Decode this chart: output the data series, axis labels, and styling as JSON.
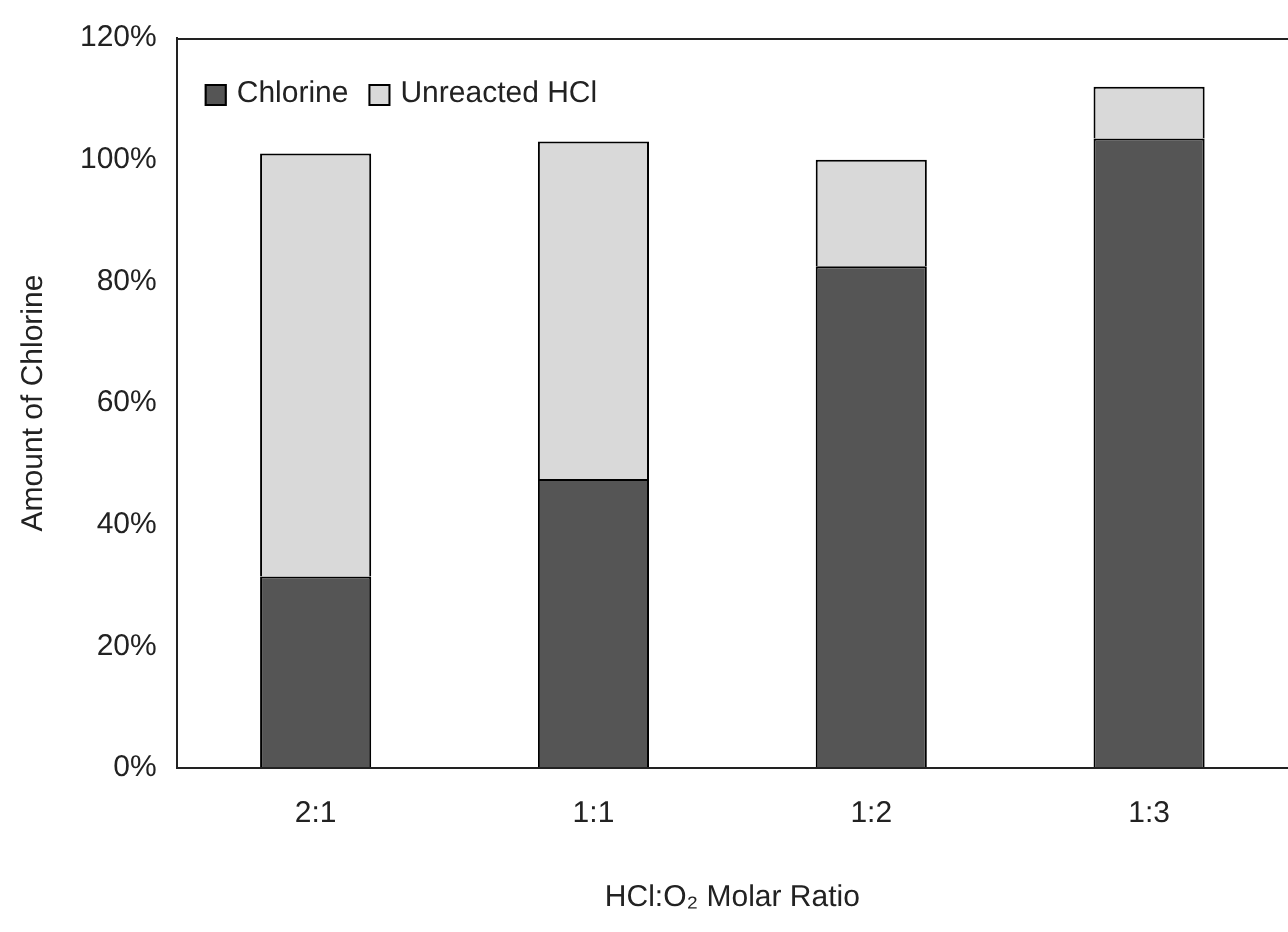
{
  "chart_data": {
    "type": "bar",
    "stacked": true,
    "xlabel": "HCl:O₂ Molar Ratio",
    "ylabel": "Amount of Chlorine",
    "categories": [
      "2:1",
      "1:1",
      "1:2",
      "1:3"
    ],
    "series": [
      {
        "name": "Chlorine",
        "color": "#555555",
        "values": [
          31.5,
          47.5,
          82.5,
          103.5
        ]
      },
      {
        "name": "Unreacted HCl",
        "color": "#d9d9d9",
        "values": [
          69.5,
          55.5,
          17.5,
          8.5
        ]
      }
    ],
    "ylim": [
      0,
      120
    ],
    "yticks": [
      {
        "value": 0,
        "label": "0%"
      },
      {
        "value": 20,
        "label": "20%"
      },
      {
        "value": 40,
        "label": "40%"
      },
      {
        "value": 60,
        "label": "60%"
      },
      {
        "value": 80,
        "label": "80%"
      },
      {
        "value": 100,
        "label": "100%"
      },
      {
        "value": 120,
        "label": "120%"
      }
    ],
    "grid": false,
    "legend": "top left"
  }
}
